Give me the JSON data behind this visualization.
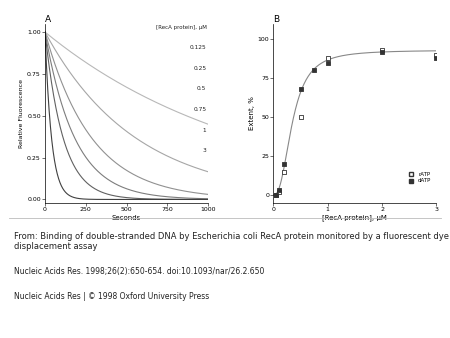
{
  "panel_A": {
    "title": "A",
    "xlabel": "Seconds",
    "ylabel": "Relative Fluorescence",
    "xlim": [
      0,
      1000
    ],
    "ylim": [
      -0.02,
      1.05
    ],
    "yticks": [
      0.0,
      0.25,
      0.5,
      0.75,
      1.0
    ],
    "xticks": [
      0,
      250,
      500,
      750,
      1000
    ],
    "legend_header": "[RecA protein], μM",
    "legend_labels": [
      "0.125",
      "0.25",
      "0.5",
      "0.75",
      "1",
      "3"
    ],
    "rate_constants": [
      0.0008,
      0.0018,
      0.0035,
      0.0055,
      0.009,
      0.025
    ],
    "gray_levels": [
      0.72,
      0.65,
      0.57,
      0.49,
      0.38,
      0.25
    ]
  },
  "panel_B": {
    "title": "B",
    "xlabel": "[RecA protein], μM",
    "ylabel": "Extent, %",
    "xlim": [
      0,
      3
    ],
    "ylim": [
      -5,
      110
    ],
    "yticks": [
      0,
      25,
      50,
      75,
      100
    ],
    "xticks": [
      0,
      1,
      2,
      3
    ],
    "ratp_x": [
      0.05,
      0.1,
      0.2,
      0.5,
      1.0,
      2.0,
      3.0
    ],
    "ratp_y": [
      0,
      2,
      15,
      50,
      88,
      93,
      90
    ],
    "datp_x": [
      0.05,
      0.1,
      0.2,
      0.5,
      0.75,
      1.0,
      2.0,
      3.0
    ],
    "datp_y": [
      0,
      3,
      20,
      68,
      80,
      85,
      92,
      88
    ],
    "legend_ratp": "rATP",
    "legend_datp": "dATP",
    "hill_n": 2.5,
    "hill_K": 0.35,
    "hill_max": 93
  },
  "footer_lines": [
    "From: Binding of double-stranded DNA by Escherichia coli RecA protein monitored by a fluorescent dye\ndisplacement assay",
    "Nucleic Acids Res. 1998;26(2):650-654. doi:10.1093/nar/26.2.650",
    "Nucleic Acids Res | © 1998 Oxford University Press"
  ],
  "bg_color": "#ffffff"
}
